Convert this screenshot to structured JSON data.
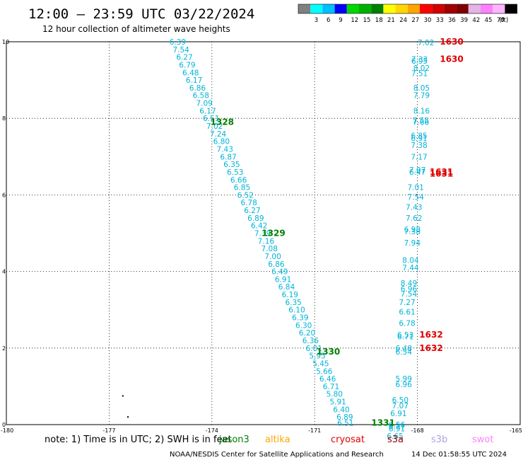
{
  "header": {
    "title": "12:00 – 23:59 UTC 03/22/2024",
    "subtitle": "12 hour collection of altimeter wave heights"
  },
  "colorbar": {
    "colors": [
      "#808080",
      "#00ffff",
      "#00bfff",
      "#0000ff",
      "#00d800",
      "#00b000",
      "#008000",
      "#ffff00",
      "#ffd700",
      "#ffa500",
      "#ff0000",
      "#d20000",
      "#a00000",
      "#800000",
      "#e4b4e4",
      "#ff80ff",
      "#ffb4ff",
      "#000000"
    ],
    "labels": [
      "3",
      "6",
      "9",
      "12",
      "15",
      "18",
      "21",
      "24",
      "27",
      "30",
      "33",
      "36",
      "39",
      "42",
      "45",
      "70"
    ],
    "unit": "(ft)"
  },
  "axes": {
    "xticks": [
      "-180",
      "-177",
      "-174",
      "-171",
      "-168",
      "-165"
    ],
    "yticks": [
      "10",
      "8",
      "6",
      "4",
      "2",
      "0"
    ]
  },
  "chart_data": {
    "type": "scatter",
    "xlim": [
      -180,
      -165
    ],
    "ylim": [
      0,
      10
    ],
    "grid": true,
    "tracks": [
      {
        "color": "#00b4d8",
        "points": [
          [
            -175.0,
            10.0,
            "6.39"
          ],
          [
            -174.9,
            9.8,
            "7.54"
          ],
          [
            -174.8,
            9.6,
            "6.27"
          ],
          [
            -174.72,
            9.4,
            "6.79"
          ],
          [
            -174.62,
            9.2,
            "6.48"
          ],
          [
            -174.52,
            9.0,
            "6.17"
          ],
          [
            -174.42,
            8.8,
            "6.86"
          ],
          [
            -174.32,
            8.6,
            "6.58"
          ],
          [
            -174.22,
            8.4,
            "7.09"
          ],
          [
            -174.12,
            8.2,
            "6.17"
          ],
          [
            -174.02,
            8.0,
            "6.51"
          ],
          [
            -173.92,
            7.8,
            "7.02"
          ],
          [
            -173.82,
            7.6,
            "7.24"
          ],
          [
            -173.72,
            7.4,
            "6.80"
          ],
          [
            -173.62,
            7.2,
            "7.43"
          ],
          [
            -173.52,
            7.0,
            "6.87"
          ],
          [
            -173.42,
            6.8,
            "6.35"
          ],
          [
            -173.32,
            6.6,
            "6.53"
          ],
          [
            -173.22,
            6.4,
            "6.66"
          ],
          [
            -173.12,
            6.2,
            "6.85"
          ],
          [
            -173.02,
            6.0,
            "6.52"
          ],
          [
            -172.92,
            5.8,
            "6.78"
          ],
          [
            -172.82,
            5.6,
            "6.27"
          ],
          [
            -172.72,
            5.4,
            "6.89"
          ],
          [
            -172.62,
            5.2,
            "6.42"
          ],
          [
            -172.52,
            5.0,
            "7.39"
          ],
          [
            -172.42,
            4.8,
            "7.16"
          ],
          [
            -172.32,
            4.6,
            "7.08"
          ],
          [
            -172.22,
            4.4,
            "7.00"
          ],
          [
            -172.12,
            4.2,
            "6.86"
          ],
          [
            -172.02,
            4.0,
            "6.49"
          ],
          [
            -171.92,
            3.8,
            "6.91"
          ],
          [
            -171.82,
            3.6,
            "6.84"
          ],
          [
            -171.72,
            3.4,
            "6.19"
          ],
          [
            -171.62,
            3.2,
            "6.35"
          ],
          [
            -171.52,
            3.0,
            "6.10"
          ],
          [
            -171.42,
            2.8,
            "6.39"
          ],
          [
            -171.32,
            2.6,
            "6.30"
          ],
          [
            -171.22,
            2.4,
            "6.20"
          ],
          [
            -171.12,
            2.2,
            "6.36"
          ],
          [
            -171.02,
            2.0,
            "6.01"
          ],
          [
            -170.92,
            1.8,
            "5.95"
          ],
          [
            -170.82,
            1.6,
            "5.45"
          ],
          [
            -170.72,
            1.4,
            "5.66"
          ],
          [
            -170.62,
            1.2,
            "6.46"
          ],
          [
            -170.52,
            1.0,
            "6.71"
          ],
          [
            -170.42,
            0.8,
            "5.80"
          ],
          [
            -170.32,
            0.6,
            "5.91"
          ],
          [
            -170.22,
            0.4,
            "6.40"
          ],
          [
            -170.12,
            0.2,
            "6.89"
          ],
          [
            -170.1,
            0.05,
            "6.51"
          ]
        ]
      },
      {
        "color": "#00b4d8",
        "points": [
          [
            -167.75,
            9.98,
            "7.02"
          ],
          [
            -167.94,
            9.55,
            "7.33"
          ],
          [
            -167.94,
            9.5,
            "6.95"
          ],
          [
            -167.88,
            9.32,
            "8.02"
          ],
          [
            -167.94,
            9.18,
            "7.51"
          ],
          [
            -167.88,
            8.8,
            "8.05"
          ],
          [
            -167.88,
            8.6,
            "7.79"
          ],
          [
            -167.88,
            8.2,
            "8.16"
          ],
          [
            -167.9,
            7.95,
            "7.55"
          ],
          [
            -167.9,
            7.9,
            "7.66"
          ],
          [
            -167.95,
            7.55,
            "6.85"
          ],
          [
            -167.95,
            7.48,
            "6.91"
          ],
          [
            -167.95,
            7.3,
            "7.38"
          ],
          [
            -167.95,
            7.0,
            "7.17"
          ],
          [
            -168.0,
            6.65,
            "7.07"
          ],
          [
            -168.0,
            6.6,
            "6.47"
          ],
          [
            -168.05,
            6.2,
            "7.01"
          ],
          [
            -168.05,
            5.95,
            "7.54"
          ],
          [
            -168.1,
            5.68,
            "7.43"
          ],
          [
            -168.1,
            5.4,
            "7.62"
          ],
          [
            -168.15,
            5.1,
            "6.98"
          ],
          [
            -168.15,
            5.05,
            "7.38"
          ],
          [
            -168.15,
            4.75,
            "7.94"
          ],
          [
            -168.2,
            4.3,
            "8.04"
          ],
          [
            -168.2,
            4.1,
            "7.44"
          ],
          [
            -168.25,
            3.7,
            "8.49"
          ],
          [
            -168.25,
            3.55,
            "6.96"
          ],
          [
            -168.25,
            3.42,
            "7.54"
          ],
          [
            -168.3,
            3.2,
            "7.27"
          ],
          [
            -168.3,
            2.95,
            "6.61"
          ],
          [
            -168.3,
            2.65,
            "6.78"
          ],
          [
            -168.35,
            2.35,
            "6.53"
          ],
          [
            -168.35,
            2.3,
            "6.71"
          ],
          [
            -168.4,
            2.0,
            "6.48"
          ],
          [
            -168.4,
            1.9,
            "6.54"
          ],
          [
            -168.4,
            1.2,
            "5.99"
          ],
          [
            -168.4,
            1.05,
            "6.96"
          ],
          [
            -168.5,
            0.65,
            "6.50"
          ],
          [
            -168.5,
            0.5,
            "7.07"
          ],
          [
            -168.55,
            0.3,
            "6.91"
          ],
          [
            -168.6,
            0.0,
            "6.56"
          ],
          [
            -168.6,
            -0.05,
            "6.77"
          ],
          [
            -168.6,
            -0.1,
            "6.91"
          ],
          [
            -168.65,
            -0.3,
            "6.65"
          ]
        ]
      }
    ],
    "passes": [
      {
        "x": -173.7,
        "y": 7.9,
        "label": "1328",
        "color": "#008000"
      },
      {
        "x": -172.2,
        "y": 5.0,
        "label": "1329",
        "color": "#008000"
      },
      {
        "x": -170.6,
        "y": 1.9,
        "label": "1330",
        "color": "#008000"
      },
      {
        "x": -169.0,
        "y": 0.05,
        "label": "1331",
        "color": "#008000"
      },
      {
        "x": -167.0,
        "y": 10.0,
        "label": "1630",
        "color": "#e00000"
      },
      {
        "x": -167.0,
        "y": 9.55,
        "label": "1630",
        "color": "#e00000"
      },
      {
        "x": -167.3,
        "y": 6.6,
        "label": "1631",
        "color": "#e00000"
      },
      {
        "x": -167.3,
        "y": 6.55,
        "label": "1631",
        "color": "#e00000"
      },
      {
        "x": -167.6,
        "y": 2.35,
        "label": "1632",
        "color": "#e00000"
      },
      {
        "x": -167.6,
        "y": 2.0,
        "label": "1632",
        "color": "#e00000"
      }
    ],
    "dots": [
      [
        -176.6,
        0.75
      ],
      [
        -176.45,
        0.2
      ]
    ]
  },
  "note": {
    "text": "note: 1) Time is in UTC; 2) SWH is in feet",
    "missions": [
      {
        "name": "jason3",
        "color": "#008000"
      },
      {
        "name": "altika",
        "color": "#ffa500"
      },
      {
        "name": "cryosat",
        "color": "#e00000"
      },
      {
        "name": "s3a",
        "color": "#a00000"
      },
      {
        "name": "s3b",
        "color": "#b0a0e0"
      },
      {
        "name": "swot",
        "color": "#ff80ff"
      }
    ]
  },
  "footer": {
    "credit": "NOAA/NESDIS Center for Satellite Applications and Research",
    "timestamp": "14 Dec 01:58:55 UTC 2024"
  }
}
